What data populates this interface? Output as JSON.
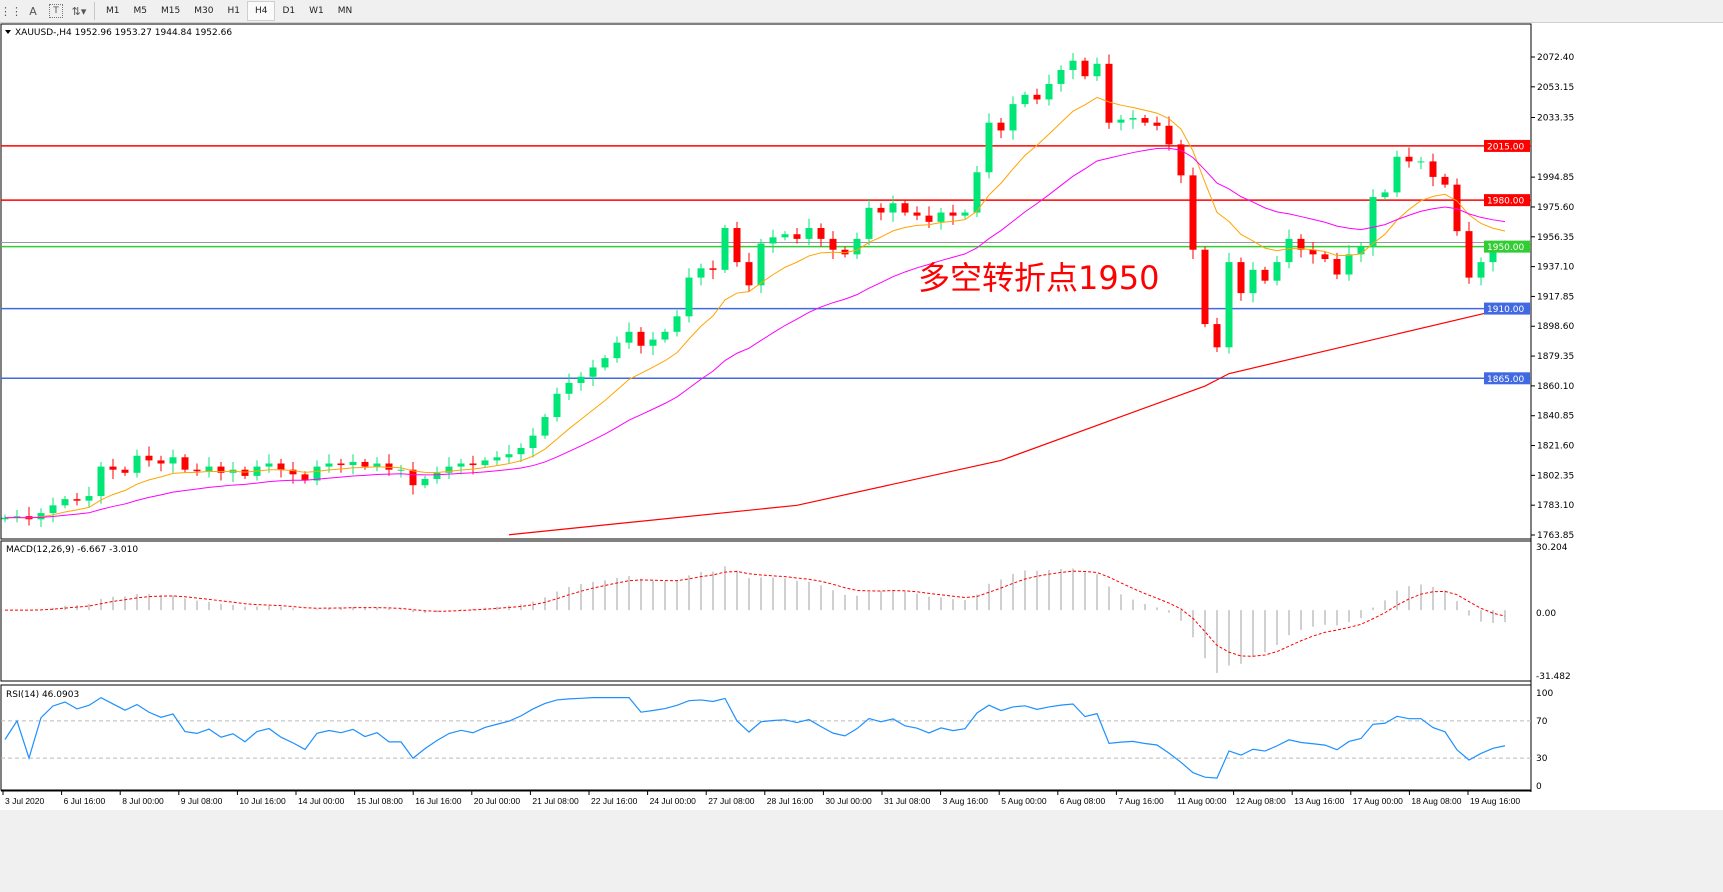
{
  "toolbar": {
    "icons": [
      "fibonacci-icon",
      "text-icon",
      "text-label-icon",
      "arrows-icon"
    ],
    "text_icon_glyph": "A",
    "label_icon_glyph": "T",
    "timeframes": [
      {
        "label": "M1"
      },
      {
        "label": "M5"
      },
      {
        "label": "M15"
      },
      {
        "label": "M30"
      },
      {
        "label": "H1"
      },
      {
        "label": "H4",
        "active": true
      },
      {
        "label": "D1"
      },
      {
        "label": "W1"
      },
      {
        "label": "MN"
      }
    ]
  },
  "chart": {
    "header": "XAUUSD-,H4  1952.96 1953.27 1944.84 1952.66",
    "annotation": "多空转折点1950",
    "colors": {
      "bull": "#00e676",
      "bear": "#ff0000",
      "ma_fast": "#ffa500",
      "ma_mid": "#ff00ff",
      "ma_slow": "#ff0000",
      "level_red": "#ff0000",
      "level_green": "#32cd32",
      "level_blue": "#4169e1",
      "rsi": "#1e90ff",
      "macd_hist": "#c0c0c0",
      "macd_signal": "#ff0000"
    },
    "price_axis": [
      "2072.40",
      "2053.15",
      "2033.35",
      "1994.85",
      "1975.60",
      "1956.35",
      "1937.10",
      "1917.85",
      "1898.60",
      "1879.35",
      "1860.10",
      "1840.85",
      "1821.60",
      "1802.35",
      "1783.10",
      "1763.85"
    ],
    "levels": [
      {
        "price": 2015.0,
        "label": "2015.00",
        "color": "#ff0000"
      },
      {
        "price": 1980.0,
        "label": "1980.00",
        "color": "#ff0000"
      },
      {
        "price": 1950.0,
        "label": "1950.00",
        "color": "#32cd32"
      },
      {
        "price": 1910.0,
        "label": "1910.00",
        "color": "#4169e1"
      },
      {
        "price": 1865.0,
        "label": "1865.00",
        "color": "#4169e1"
      }
    ],
    "current_price": 1952.66,
    "time_axis": [
      "3 Jul 2020",
      "6 Jul 16:00",
      "8 Jul 00:00",
      "9 Jul 08:00",
      "10 Jul 16:00",
      "14 Jul 00:00",
      "15 Jul 08:00",
      "16 Jul 16:00",
      "20 Jul 00:00",
      "21 Jul 08:00",
      "22 Jul 16:00",
      "24 Jul 00:00",
      "27 Jul 08:00",
      "28 Jul 16:00",
      "30 Jul 00:00",
      "31 Jul 08:00",
      "3 Aug 16:00",
      "5 Aug 00:00",
      "6 Aug 08:00",
      "7 Aug 16:00",
      "11 Aug 00:00",
      "12 Aug 08:00",
      "13 Aug 16:00",
      "17 Aug 00:00",
      "18 Aug 08:00",
      "19 Aug 16:00"
    ]
  },
  "macd": {
    "label": "MACD(12,26,9) -6.667 -3.010",
    "axis": [
      "30.204",
      "0.00",
      "-31.482"
    ],
    "range": [
      -31.482,
      30.204
    ]
  },
  "rsi": {
    "label": "RSI(14) 46.0903",
    "axis": [
      "100",
      "70",
      "30",
      "0"
    ],
    "levels": [
      70,
      30
    ]
  },
  "chart_data": {
    "type": "candlestick",
    "symbol": "XAUUSD-",
    "timeframe": "H4",
    "ylim": [
      1763.85,
      2072.4
    ],
    "closes": [
      1775,
      1776,
      1774,
      1778,
      1783,
      1787,
      1786,
      1789,
      1808,
      1806,
      1804,
      1815,
      1812,
      1810,
      1814,
      1806,
      1805,
      1808,
      1804,
      1806,
      1802,
      1808,
      1810,
      1806,
      1803,
      1799,
      1808,
      1810,
      1809,
      1811,
      1808,
      1810,
      1806,
      1806,
      1796,
      1800,
      1804,
      1808,
      1810,
      1809,
      1812,
      1814,
      1816,
      1820,
      1828,
      1840,
      1855,
      1862,
      1866,
      1872,
      1878,
      1888,
      1895,
      1886,
      1890,
      1895,
      1905,
      1930,
      1936,
      1935,
      1962,
      1940,
      1925,
      1952,
      1956,
      1958,
      1955,
      1962,
      1955,
      1948,
      1945,
      1955,
      1975,
      1972,
      1978,
      1972,
      1970,
      1966,
      1972,
      1970,
      1972,
      1998,
      2030,
      2025,
      2042,
      2048,
      2045,
      2055,
      2064,
      2070,
      2060,
      2068,
      2030,
      2032,
      2033,
      2030,
      2028,
      2016,
      1996,
      1948,
      1900,
      1885,
      1940,
      1920,
      1935,
      1928,
      1940,
      1955,
      1948,
      1945,
      1942,
      1932,
      1945,
      1950,
      1982,
      1985,
      2008,
      2005,
      2005,
      1995,
      1990,
      1960,
      1930,
      1940,
      1948,
      1952
    ],
    "ma_slow_points": [
      [
        42,
        1764
      ],
      [
        66,
        1783
      ],
      [
        83,
        1812
      ],
      [
        100,
        1860
      ],
      [
        102,
        1868
      ],
      [
        125,
        1910
      ]
    ]
  }
}
